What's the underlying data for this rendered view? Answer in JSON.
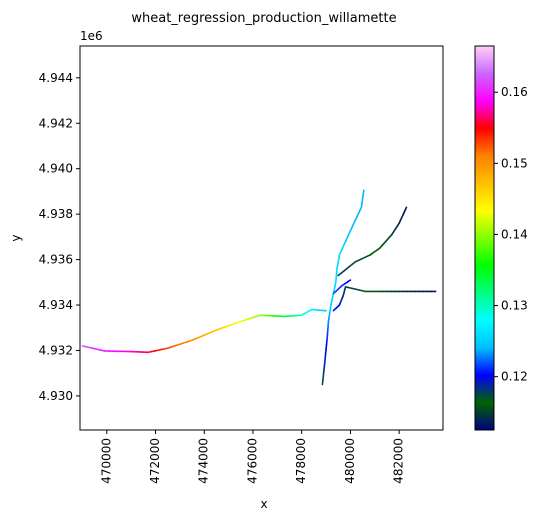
{
  "chart_data": {
    "type": "raster-map",
    "title": "wheat_regression_production_willamette",
    "xlabel": "x",
    "ylabel": "y",
    "y_offset_text": "1e6",
    "xlim": [
      468900,
      483800
    ],
    "ylim": [
      4928500,
      4945400
    ],
    "x_ticks": [
      "470000",
      "472000",
      "474000",
      "476000",
      "478000",
      "480000",
      "482000"
    ],
    "x_tick_values": [
      470000,
      472000,
      474000,
      476000,
      478000,
      480000,
      482000
    ],
    "y_ticks": [
      "4.930",
      "4.932",
      "4.934",
      "4.936",
      "4.938",
      "4.940",
      "4.942",
      "4.944"
    ],
    "y_tick_values": [
      4930000,
      4932000,
      4934000,
      4936000,
      4938000,
      4940000,
      4942000,
      4944000
    ],
    "colorbar": {
      "min": 0.1125,
      "max": 0.1665,
      "ticks": [
        "0.12",
        "0.13",
        "0.14",
        "0.15",
        "0.16"
      ],
      "tick_values": [
        0.12,
        0.13,
        0.14,
        0.15,
        0.16
      ],
      "colormap": "gist_ncar",
      "stops": [
        "#000080",
        "#006400",
        "#0000ff",
        "#00bfff",
        "#00ffff",
        "#00ff80",
        "#00ff00",
        "#80ff00",
        "#ffff00",
        "#ffbf00",
        "#ff8000",
        "#ff0000",
        "#ff00ff",
        "#cc66ff",
        "#ffd0f5"
      ]
    },
    "series": [
      {
        "points": [
          [
            469000,
            4932200,
            0.162
          ],
          [
            469900,
            4931980,
            0.16
          ],
          [
            471000,
            4931950,
            0.158
          ],
          [
            471700,
            4931920,
            0.156
          ],
          [
            472500,
            4932100,
            0.153
          ],
          [
            473500,
            4932450,
            0.15
          ],
          [
            474500,
            4932900,
            0.147
          ],
          [
            475500,
            4933280,
            0.143
          ],
          [
            476300,
            4933550,
            0.14
          ],
          [
            477300,
            4933500,
            0.134
          ],
          [
            478000,
            4933550,
            0.13
          ],
          [
            478400,
            4933800,
            0.127
          ],
          [
            479000,
            4933750,
            0.125
          ]
        ]
      },
      {
        "points": [
          [
            478850,
            4930500,
            0.117
          ],
          [
            478950,
            4931500,
            0.119
          ],
          [
            479050,
            4932600,
            0.121
          ],
          [
            479100,
            4933300,
            0.123
          ],
          [
            479200,
            4934000,
            0.125
          ],
          [
            479400,
            4935000,
            0.126
          ],
          [
            479450,
            4935600,
            0.126
          ],
          [
            479550,
            4936200,
            0.126
          ],
          [
            479800,
            4936800,
            0.125
          ],
          [
            480100,
            4937500,
            0.124
          ],
          [
            480450,
            4938300,
            0.124
          ],
          [
            480550,
            4939050,
            0.124
          ]
        ]
      },
      {
        "points": [
          [
            479300,
            4933750,
            0.121
          ],
          [
            479550,
            4934000,
            0.12
          ],
          [
            479700,
            4934400,
            0.118
          ],
          [
            479800,
            4934800,
            0.118
          ],
          [
            480600,
            4934600,
            0.117
          ],
          [
            481500,
            4934600,
            0.115
          ],
          [
            482500,
            4934600,
            0.114
          ],
          [
            483500,
            4934600,
            0.113
          ]
        ]
      },
      {
        "points": [
          [
            479500,
            4935300,
            0.118
          ],
          [
            480200,
            4935900,
            0.117
          ],
          [
            480800,
            4936200,
            0.117
          ],
          [
            481200,
            4936500,
            0.116
          ],
          [
            481700,
            4937100,
            0.115
          ],
          [
            482000,
            4937600,
            0.114
          ],
          [
            482300,
            4938300,
            0.113
          ]
        ]
      },
      {
        "points": [
          [
            479300,
            4934500,
            0.122
          ],
          [
            479650,
            4934850,
            0.121
          ],
          [
            480000,
            4935100,
            0.12
          ]
        ]
      }
    ]
  }
}
